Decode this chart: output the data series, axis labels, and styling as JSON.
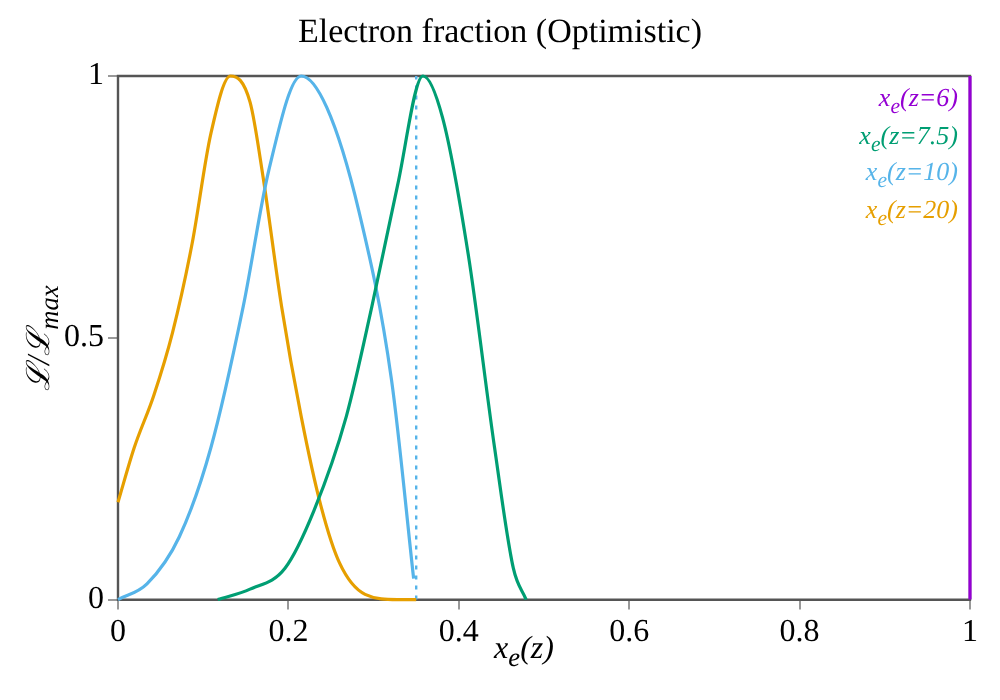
{
  "chart_data": {
    "type": "line",
    "title": "Electron fraction (Optimistic)",
    "xlabel": "x$_{e}$(z)",
    "ylabel": "ℒ/ℒ$_{max}$",
    "xlim": [
      0,
      1
    ],
    "xticks": [
      0,
      0.2,
      0.4,
      0.6,
      0.8,
      1
    ],
    "ylim": [
      0,
      1
    ],
    "yticks": [
      0,
      0.5,
      1
    ],
    "grid": false,
    "legend": "top right",
    "marker": "none",
    "line_style": "solid",
    "ref_lines": [
      {
        "axis": "x",
        "value": 0.35,
        "color": "#56b4e9",
        "line_style": "dotted"
      }
    ],
    "series": [
      {
        "name": "x$_{e}$(z=6)",
        "color": "#9400d3",
        "x": [
          1,
          1
        ],
        "values": [
          0,
          1
        ]
      },
      {
        "name": "x$_{e}$(z=7.5)",
        "color": "#009e73",
        "x": [
          0.117,
          0.155,
          0.196,
          0.23,
          0.268,
          0.298,
          0.328,
          0.358,
          0.381,
          0.411,
          0.442,
          0.464,
          0.479
        ],
        "values": [
          0,
          0.02,
          0.06,
          0.17,
          0.35,
          0.56,
          0.79,
          1,
          0.92,
          0.66,
          0.29,
          0.06,
          0
        ]
      },
      {
        "name": "x$_{e}$(z=10)",
        "color": "#56b4e9",
        "x": [
          0,
          0.034,
          0.072,
          0.109,
          0.147,
          0.177,
          0.215,
          0.245,
          0.283,
          0.321,
          0.347
        ],
        "values": [
          0,
          0.03,
          0.12,
          0.29,
          0.56,
          0.82,
          1,
          0.94,
          0.74,
          0.42,
          0.04
        ]
      },
      {
        "name": "x$_{e}$(z=20)",
        "color": "#e69f00",
        "x": [
          0,
          0.019,
          0.042,
          0.064,
          0.087,
          0.109,
          0.132,
          0.155,
          0.17,
          0.192,
          0.215,
          0.238,
          0.26,
          0.29,
          0.328,
          0.35
        ],
        "values": [
          0.186,
          0.29,
          0.39,
          0.51,
          0.68,
          0.89,
          1,
          0.95,
          0.81,
          0.56,
          0.35,
          0.18,
          0.07,
          0.01,
          0,
          0
        ]
      }
    ]
  }
}
